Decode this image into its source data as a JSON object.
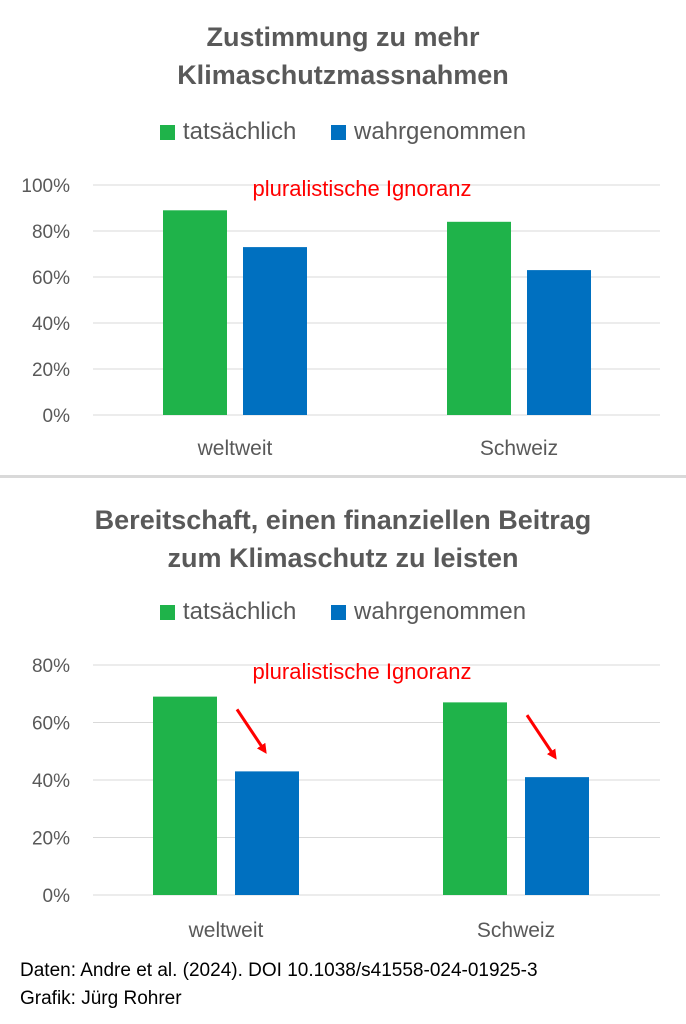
{
  "colors": {
    "actual": "#1fb34a",
    "perceived": "#0070c0",
    "annotation": "#ff0000",
    "grid": "#d9d9d9",
    "text": "#595959"
  },
  "chart_data": [
    {
      "type": "bar",
      "title_line1": "Zustimmung zu mehr",
      "title_line2": "Klimaschutzmassnahmen",
      "categories": [
        "weltweit",
        "Schweiz"
      ],
      "series": [
        {
          "name": "tatsächlich",
          "values": [
            89,
            84
          ]
        },
        {
          "name": "wahrgenommen",
          "values": [
            73,
            63
          ]
        }
      ],
      "ylim": [
        0,
        100
      ],
      "yticks": [
        "0%",
        "20%",
        "40%",
        "60%",
        "80%",
        "100%"
      ],
      "legend_position": "top",
      "grid": true,
      "annotation": "pluralistische Ignoranz",
      "arrows": false
    },
    {
      "type": "bar",
      "title_line1": "Bereitschaft, einen finanziellen Beitrag",
      "title_line2": "zum Klimaschutz zu leisten",
      "categories": [
        "weltweit",
        "Schweiz"
      ],
      "series": [
        {
          "name": "tatsächlich",
          "values": [
            69,
            67
          ]
        },
        {
          "name": "wahrgenommen",
          "values": [
            43,
            41
          ]
        }
      ],
      "ylim": [
        0,
        80
      ],
      "yticks": [
        "0%",
        "20%",
        "40%",
        "60%",
        "80%"
      ],
      "legend_position": "top",
      "grid": true,
      "annotation": "pluralistische Ignoranz",
      "arrows": true
    }
  ],
  "footer": {
    "source": "Daten: Andre et al. (2024). DOI 10.1038/s41558-024-01925-3",
    "credit": "Grafik: Jürg Rohrer"
  }
}
